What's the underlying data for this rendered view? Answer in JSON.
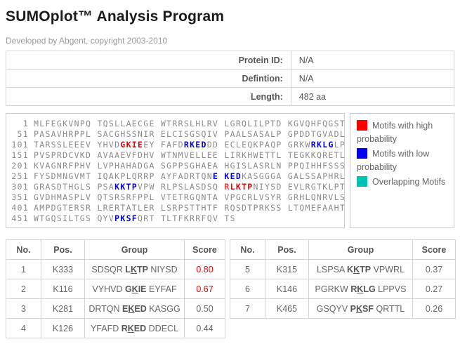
{
  "header": {
    "title": "SUMOplot™ Analysis Program",
    "subtitle": "Developed by Abgent, copyright 2003-2010"
  },
  "info": {
    "rows": [
      {
        "label": "Protein ID:",
        "value": "N/A"
      },
      {
        "label": "Defintion:",
        "value": "N/A"
      },
      {
        "label": "Length:",
        "value": "482 aa"
      }
    ]
  },
  "sequence": {
    "lines": [
      {
        "pos": "1",
        "segments": [
          {
            "text": "MLFEGKVNPQ TQSLLAECGE WTRRSLHLRV LGRQLILPTD KGVQHFQGST",
            "style": "normal"
          }
        ]
      },
      {
        "pos": "51",
        "segments": [
          {
            "text": "PASAVHRPPL SACGHSSNIR ELCISGSQIV PAALSASALP GPDDTGVADL",
            "style": "normal"
          }
        ]
      },
      {
        "pos": "101",
        "segments": [
          {
            "text": "TARSSLEEEV YHVD",
            "style": "normal"
          },
          {
            "text": "GKIE",
            "style": "red-bold"
          },
          {
            "text": "EY FAFD",
            "style": "normal"
          },
          {
            "text": "RKED",
            "style": "blue-bold"
          },
          {
            "text": "DD ECLEQKPAQP GRKW",
            "style": "normal"
          },
          {
            "text": "RKLG",
            "style": "blue-bold"
          },
          {
            "text": "LP",
            "style": "normal"
          }
        ]
      },
      {
        "pos": "151",
        "segments": [
          {
            "text": "PVSPRDCVKD AVAAEVFDHV WTNMVELLEE LIRKHWETTL TEGKKQRETL",
            "style": "normal"
          }
        ]
      },
      {
        "pos": "201",
        "segments": [
          {
            "text": "KVAGNRFPHV LVPHAHADGA SGPPSGHAEA HGISLASRLN PPQIHHFSSS",
            "style": "normal"
          }
        ]
      },
      {
        "pos": "251",
        "segments": [
          {
            "text": "FYSDMNGVMT IQAKPLQRRP AYFADRTQN",
            "style": "normal"
          },
          {
            "text": "E KED",
            "style": "blue-bold"
          },
          {
            "text": "KASGGGA GALSSAPHRL",
            "style": "normal"
          }
        ]
      },
      {
        "pos": "301",
        "segments": [
          {
            "text": "GRASDTHGLS PSA",
            "style": "normal"
          },
          {
            "text": "KKTP",
            "style": "blue-bold"
          },
          {
            "text": "VPW RLPSLASDSQ ",
            "style": "normal"
          },
          {
            "text": "R",
            "style": "red"
          },
          {
            "text": "LKTP",
            "style": "red-bold"
          },
          {
            "text": "NIYSD EVLRGTKLPT",
            "style": "normal"
          }
        ]
      },
      {
        "pos": "351",
        "segments": [
          {
            "text": "GVDHMASPLV QTSRSRFPPL VTETRGQNTA VPGCRLVSYR GRHLQNRVLS",
            "style": "normal"
          }
        ]
      },
      {
        "pos": "401",
        "segments": [
          {
            "text": "AMPDGTERSR LRERTATLER LSRPSTTHTF RQSDTPRKSS LTQMEFAAHT",
            "style": "normal"
          }
        ]
      },
      {
        "pos": "451",
        "segments": [
          {
            "text": "WTGQSILTGS QYV",
            "style": "normal"
          },
          {
            "text": "PKSF",
            "style": "blue-bold"
          },
          {
            "text": "QRT TLTFKRRFQV TS",
            "style": "normal"
          }
        ]
      }
    ]
  },
  "legend": {
    "items": [
      {
        "name": "high-probability",
        "color": "#ff0000",
        "label": "Motifs with high probability"
      },
      {
        "name": "low-probability",
        "color": "#0000ee",
        "label": "Motifs with low probability"
      },
      {
        "name": "overlapping",
        "color": "#00c2b2",
        "label": "Overlapping Motifs"
      }
    ]
  },
  "results": {
    "columns": [
      "No.",
      "Pos.",
      "Group",
      "Score"
    ],
    "left_rows": [
      {
        "no": "1",
        "pos": "K333",
        "group": {
          "pre": "SDSQR ",
          "motif": "LKTP",
          "post": " NIYSD"
        },
        "score": "0.80",
        "high": true
      },
      {
        "no": "2",
        "pos": "K116",
        "group": {
          "pre": "VYHVD ",
          "motif": "GKIE",
          "post": " EYFAF"
        },
        "score": "0.67",
        "high": true
      },
      {
        "no": "3",
        "pos": "K281",
        "group": {
          "pre": "DRTQN ",
          "motif": "EKED",
          "post": " KASGG"
        },
        "score": "0.50",
        "high": false
      },
      {
        "no": "4",
        "pos": "K126",
        "group": {
          "pre": "YFAFD ",
          "motif": "RKED",
          "post": " DDECL"
        },
        "score": "0.44",
        "high": false
      }
    ],
    "right_rows": [
      {
        "no": "5",
        "pos": "K315",
        "group": {
          "pre": "LSPSA ",
          "motif": "KKTP",
          "post": " VPWRL"
        },
        "score": "0.37",
        "high": false
      },
      {
        "no": "6",
        "pos": "K146",
        "group": {
          "pre": "PGRKW ",
          "motif": "RKLG",
          "post": " LPPVS"
        },
        "score": "0.27",
        "high": false
      },
      {
        "no": "7",
        "pos": "K465",
        "group": {
          "pre": "GSQYV ",
          "motif": "PKSF",
          "post": " QRTTL"
        },
        "score": "0.26",
        "high": false
      }
    ]
  }
}
